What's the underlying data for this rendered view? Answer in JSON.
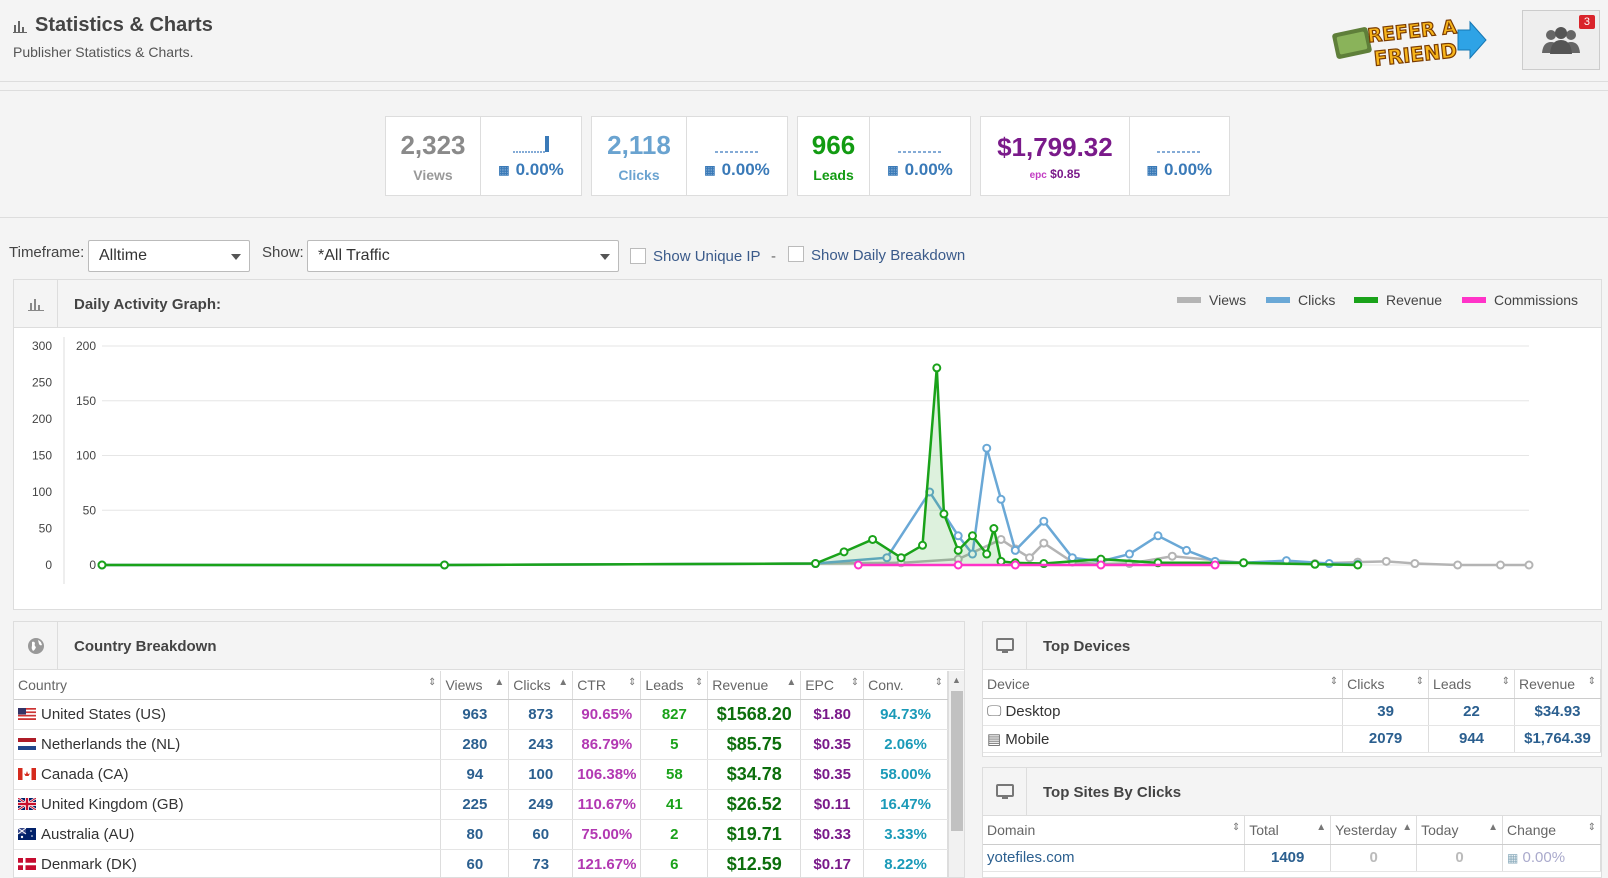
{
  "header": {
    "title": "Statistics & Charts",
    "subtitle": "Publisher Statistics & Charts.",
    "refer_logo_text": "REFER A FRIEND",
    "notification_count": "3"
  },
  "stats": [
    {
      "value": "2,323",
      "label": "Views",
      "pct": "0.00%",
      "color": "#8a8a8a",
      "label_color": "#999999"
    },
    {
      "value": "2,118",
      "label": "Clicks",
      "pct": "0.00%",
      "color": "#6aa3d0",
      "label_color": "#6aa3d0"
    },
    {
      "value": "966",
      "label": "Leads",
      "pct": "0.00%",
      "color": "#129b12",
      "label_color": "#129b12"
    },
    {
      "value": "$1,799.32",
      "label": "epc",
      "epc_value": "$0.85",
      "pct": "0.00%",
      "color": "#7a1a8a",
      "label_color": "#c23bc2"
    }
  ],
  "filters": {
    "timeframe_label": "Timeframe:",
    "timeframe_value": "Alltime",
    "show_label": "Show:",
    "show_value": "*All Traffic",
    "unique_ip_label": "Show Unique IP",
    "separator": "-",
    "daily_breakdown_label": "Show Daily Breakdown"
  },
  "graph": {
    "title": "Daily Activity Graph:",
    "legend": [
      {
        "name": "Views",
        "color": "#b4b4b4"
      },
      {
        "name": "Clicks",
        "color": "#6aa8d6"
      },
      {
        "name": "Revenue",
        "color": "#1aa21a"
      },
      {
        "name": "Commissions",
        "color": "#ff33c8"
      }
    ]
  },
  "chart_data": {
    "type": "line",
    "left_axis_ticks": [
      "300",
      "250",
      "200",
      "150",
      "100",
      "50",
      "0"
    ],
    "right_axis_ticks": [
      "200",
      "150",
      "100",
      "50",
      "0"
    ],
    "series": [
      {
        "name": "Views",
        "points": [
          [
            0.0,
            0
          ],
          [
            0.24,
            0
          ],
          [
            0.5,
            2
          ],
          [
            0.56,
            3
          ],
          [
            0.6,
            8
          ],
          [
            0.63,
            35
          ],
          [
            0.64,
            22
          ],
          [
            0.65,
            10
          ],
          [
            0.66,
            30
          ],
          [
            0.68,
            4
          ],
          [
            0.7,
            1
          ],
          [
            0.72,
            2
          ],
          [
            0.75,
            12
          ],
          [
            0.8,
            3
          ],
          [
            0.85,
            2
          ],
          [
            0.88,
            4
          ],
          [
            0.9,
            5
          ],
          [
            0.92,
            2
          ],
          [
            0.95,
            0
          ],
          [
            0.98,
            0
          ],
          [
            1.0,
            0
          ]
        ]
      },
      {
        "name": "Clicks",
        "points": [
          [
            0.0,
            0
          ],
          [
            0.24,
            0
          ],
          [
            0.5,
            2
          ],
          [
            0.55,
            10
          ],
          [
            0.58,
            100
          ],
          [
            0.6,
            40
          ],
          [
            0.61,
            15
          ],
          [
            0.62,
            160
          ],
          [
            0.63,
            90
          ],
          [
            0.64,
            20
          ],
          [
            0.66,
            60
          ],
          [
            0.68,
            10
          ],
          [
            0.7,
            5
          ],
          [
            0.72,
            15
          ],
          [
            0.74,
            40
          ],
          [
            0.76,
            20
          ],
          [
            0.78,
            5
          ],
          [
            0.8,
            3
          ],
          [
            0.83,
            6
          ],
          [
            0.86,
            2
          ],
          [
            0.88,
            1
          ]
        ]
      },
      {
        "name": "Revenue",
        "points": [
          [
            0.0,
            0
          ],
          [
            0.24,
            0
          ],
          [
            0.5,
            2
          ],
          [
            0.52,
            18
          ],
          [
            0.54,
            35
          ],
          [
            0.56,
            10
          ],
          [
            0.575,
            27
          ],
          [
            0.585,
            270
          ],
          [
            0.59,
            70
          ],
          [
            0.6,
            20
          ],
          [
            0.61,
            40
          ],
          [
            0.62,
            15
          ],
          [
            0.625,
            50
          ],
          [
            0.63,
            5
          ],
          [
            0.64,
            3
          ],
          [
            0.66,
            2
          ],
          [
            0.7,
            8
          ],
          [
            0.74,
            3
          ],
          [
            0.8,
            3
          ],
          [
            0.85,
            1
          ],
          [
            0.88,
            0
          ]
        ]
      },
      {
        "name": "Commissions",
        "points": [
          [
            0.53,
            0
          ],
          [
            0.6,
            0
          ],
          [
            0.64,
            0
          ],
          [
            0.7,
            0
          ],
          [
            0.78,
            0
          ]
        ]
      }
    ]
  },
  "country": {
    "title": "Country Breakdown",
    "columns": [
      "Country",
      "Views",
      "Clicks",
      "CTR",
      "Leads",
      "Revenue",
      "EPC",
      "Conv."
    ],
    "rows": [
      {
        "country": "United States (US)",
        "views": "963",
        "clicks": "873",
        "ctr": "90.65%",
        "leads": "827",
        "revenue": "$1568.20",
        "epc": "$1.80",
        "conv": "94.73%"
      },
      {
        "country": "Netherlands the (NL)",
        "views": "280",
        "clicks": "243",
        "ctr": "86.79%",
        "leads": "5",
        "revenue": "$85.75",
        "epc": "$0.35",
        "conv": "2.06%"
      },
      {
        "country": "Canada (CA)",
        "views": "94",
        "clicks": "100",
        "ctr": "106.38%",
        "leads": "58",
        "revenue": "$34.78",
        "epc": "$0.35",
        "conv": "58.00%"
      },
      {
        "country": "United Kingdom (GB)",
        "views": "225",
        "clicks": "249",
        "ctr": "110.67%",
        "leads": "41",
        "revenue": "$26.52",
        "epc": "$0.11",
        "conv": "16.47%"
      },
      {
        "country": "Australia (AU)",
        "views": "80",
        "clicks": "60",
        "ctr": "75.00%",
        "leads": "2",
        "revenue": "$19.71",
        "epc": "$0.33",
        "conv": "3.33%"
      },
      {
        "country": "Denmark (DK)",
        "views": "60",
        "clicks": "73",
        "ctr": "121.67%",
        "leads": "6",
        "revenue": "$12.59",
        "epc": "$0.17",
        "conv": "8.22%"
      }
    ]
  },
  "devices": {
    "title": "Top Devices",
    "columns": [
      "Device",
      "Clicks",
      "Leads",
      "Revenue"
    ],
    "rows": [
      {
        "device": "Desktop",
        "clicks": "39",
        "leads": "22",
        "revenue": "$34.93"
      },
      {
        "device": "Mobile",
        "clicks": "2079",
        "leads": "944",
        "revenue": "$1,764.39"
      }
    ]
  },
  "sites": {
    "title": "Top Sites By Clicks",
    "columns": [
      "Domain",
      "Total",
      "Yesterday",
      "Today",
      "Change"
    ],
    "rows": [
      {
        "domain": "yotefiles.com",
        "total": "1409",
        "yesterday": "0",
        "today": "0",
        "change": "0.00%"
      }
    ]
  }
}
